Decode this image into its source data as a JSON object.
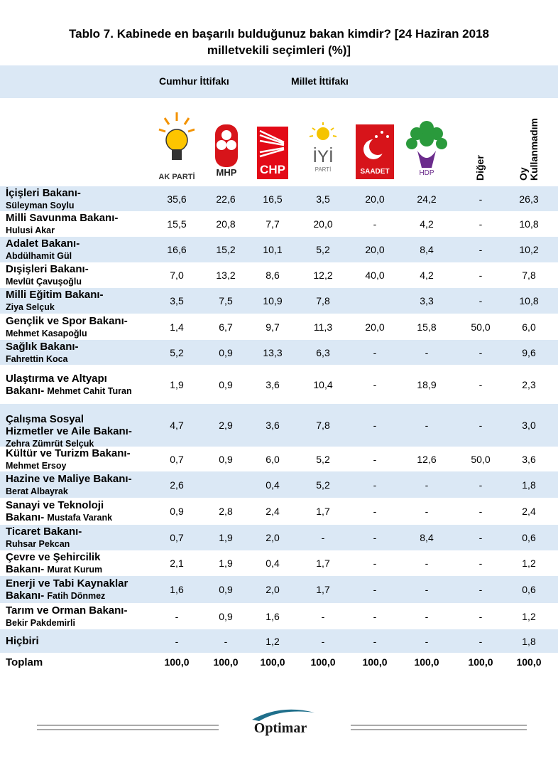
{
  "header": {
    "title_lines": [
      "Tablo 7. Kabinede en başarılı bulduğunuz bakan kimdir? [24 Haziran 2018",
      "milletvekili seçimleri (%)]"
    ],
    "alliances": [
      "Cumhur İttifakı",
      "Millet İttifakı"
    ],
    "logos": [
      "AK PARTİ",
      "MHP",
      "CHP",
      "İYİ",
      "PARTİ",
      "SAADET",
      "HDP"
    ],
    "columns": [
      "Diğer",
      "Oy Kullanmadım"
    ]
  },
  "table": {
    "rows": [
      {
        "title_lines": [
          "İçişleri Bakanı-"
        ],
        "name": "Süleyman Soylu",
        "cells": [
          "35,6",
          "22,6",
          "16,5",
          "3,5",
          "20,0",
          "24,2",
          "-",
          "26,3"
        ]
      },
      {
        "title_lines": [
          "Milli Savunma Bakanı-"
        ],
        "name": "Hulusi Akar",
        "cells": [
          "15,5",
          "20,8",
          "7,7",
          "20,0",
          "-",
          "4,2",
          "-",
          "10,8"
        ]
      },
      {
        "title_lines": [
          "Adalet Bakanı-"
        ],
        "name": "Abdülhamit Gül",
        "cells": [
          "16,6",
          "15,2",
          "10,1",
          "5,2",
          "20,0",
          "8,4",
          "-",
          "10,2"
        ]
      },
      {
        "title_lines": [
          "Dışişleri Bakanı-"
        ],
        "name": "Mevlüt Çavuşoğlu",
        "cells": [
          "7,0",
          "13,2",
          "8,6",
          "12,2",
          "40,0",
          "4,2",
          "-",
          "7,8"
        ]
      },
      {
        "title_lines": [
          "Milli Eğitim Bakanı-"
        ],
        "name": "Ziya Selçuk",
        "cells": [
          "3,5",
          "7,5",
          "10,9",
          "7,8",
          null,
          "3,3",
          "-",
          "10,8"
        ]
      },
      {
        "title_lines": [
          "Gençlik ve Spor Bakanı-"
        ],
        "name": "Mehmet Kasapoğlu",
        "cells": [
          "1,4",
          "6,7",
          "9,7",
          "11,3",
          "20,0",
          "15,8",
          "50,0",
          "6,0"
        ]
      },
      {
        "title_lines": [
          "Sağlık Bakanı-"
        ],
        "name": "Fahrettin Koca",
        "cells": [
          "5,2",
          "0,9",
          "13,3",
          "6,3",
          "-",
          "-",
          "-",
          "9,6"
        ]
      },
      {
        "title_lines": [
          "Ulaştırma ve Altyapı",
          "Bakanı-"
        ],
        "name": "Mehmet Cahit Turan",
        "cells": [
          "1,9",
          "0,9",
          "3,6",
          "10,4",
          "-",
          "18,9",
          "-",
          "2,3"
        ]
      },
      {
        "title_lines": [
          "Çalışma Sosyal",
          "Hizmetler ve Aile Bakanı-"
        ],
        "name": "Zehra Zümrüt Selçuk",
        "cells": [
          "4,7",
          "2,9",
          "3,6",
          "7,8",
          "-",
          "-",
          "-",
          "3,0"
        ]
      },
      {
        "title_lines": [
          "Kültür ve Turizm Bakanı-"
        ],
        "name": "Mehmet Ersoy",
        "cells": [
          "0,7",
          "0,9",
          "6,0",
          "5,2",
          "-",
          "12,6",
          "50,0",
          "3,6"
        ]
      },
      {
        "title_lines": [
          "Hazine ve Maliye Bakanı-"
        ],
        "name": "Berat Albayrak",
        "cells": [
          "2,6",
          null,
          "0,4",
          "5,2",
          "-",
          "-",
          "-",
          "1,8"
        ]
      },
      {
        "title_lines": [
          "Sanayi ve Teknoloji",
          "Bakanı-"
        ],
        "name": "Mustafa Varank",
        "cells": [
          "0,9",
          "2,8",
          "2,4",
          "1,7",
          "-",
          "-",
          "-",
          "2,4"
        ]
      },
      {
        "title_lines": [
          "Ticaret Bakanı-"
        ],
        "name": "Ruhsar Pekcan",
        "cells": [
          "0,7",
          "1,9",
          "2,0",
          "-",
          "-",
          "8,4",
          "-",
          "0,6"
        ]
      },
      {
        "title_lines": [
          "Çevre ve Şehircilik",
          "Bakanı-"
        ],
        "name": "Murat Kurum",
        "cells": [
          "2,1",
          "1,9",
          "0,4",
          "1,7",
          "-",
          "-",
          "-",
          "1,2"
        ]
      },
      {
        "title_lines": [
          "Enerji ve Tabi Kaynaklar",
          "Bakanı-"
        ],
        "name": "Fatih Dönmez",
        "cells": [
          "1,6",
          "0,9",
          "2,0",
          "1,7",
          "-",
          "-",
          "-",
          "0,6"
        ]
      },
      {
        "title_lines": [
          "Tarım ve Orman Bakanı-"
        ],
        "name": "Bekir Pakdemirli",
        "cells": [
          "-",
          "0,9",
          "1,6",
          "-",
          "-",
          "-",
          "-",
          "1,2"
        ]
      },
      {
        "title_lines": [
          "Hiçbiri"
        ],
        "cells": [
          "-",
          "-",
          "1,2",
          "-",
          "-",
          "-",
          "-",
          "1,8"
        ]
      },
      {
        "title_lines": [
          "Toplam"
        ],
        "cells": [
          "100,0",
          "100,0",
          "100,0",
          "100,0",
          "100,0",
          "100,0",
          "100,0",
          "100,0"
        ]
      }
    ]
  },
  "footer": {
    "brand": "Optimar"
  }
}
